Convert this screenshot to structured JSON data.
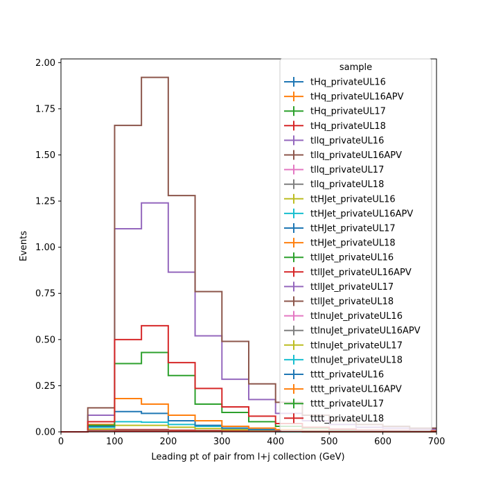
{
  "chart_data": {
    "type": "histogram-step",
    "xlabel": "Leading pt of pair from l+j collection (GeV)",
    "ylabel": "Events",
    "xlim": [
      0,
      700
    ],
    "ylim": [
      0,
      2.02
    ],
    "x_ticks": [
      0,
      100,
      200,
      300,
      400,
      500,
      600,
      700
    ],
    "y_ticks": [
      0.0,
      0.25,
      0.5,
      0.75,
      1.0,
      1.25,
      1.5,
      1.75,
      2.0
    ],
    "x_tick_labels": [
      "0",
      "100",
      "200",
      "300",
      "400",
      "500",
      "600",
      "700"
    ],
    "y_tick_labels": [
      "0.00",
      "0.25",
      "0.50",
      "0.75",
      "1.00",
      "1.25",
      "1.50",
      "1.75",
      "2.00"
    ],
    "bin_edges": [
      0,
      50,
      100,
      150,
      200,
      250,
      300,
      350,
      400,
      450,
      500,
      550,
      600,
      650,
      700
    ],
    "grid": false,
    "legend": {
      "title": "sample",
      "placement": "top-right"
    },
    "series": [
      {
        "name": "tHq_privateUL16",
        "color": "#1f77b4",
        "values": [
          0,
          0.005,
          0.008,
          0.008,
          0.006,
          0.005,
          0.004,
          0.003,
          0.002,
          0.002,
          0.001,
          0.001,
          0.001,
          0.001
        ]
      },
      {
        "name": "tHq_privateUL16APV",
        "color": "#ff7f0e",
        "values": [
          0,
          0.004,
          0.007,
          0.007,
          0.005,
          0.004,
          0.003,
          0.002,
          0.002,
          0.001,
          0.001,
          0.001,
          0.001,
          0.001
        ]
      },
      {
        "name": "tHq_privateUL17",
        "color": "#2ca02c",
        "values": [
          0,
          0.006,
          0.01,
          0.01,
          0.007,
          0.006,
          0.004,
          0.003,
          0.002,
          0.002,
          0.001,
          0.001,
          0.001,
          0.001
        ]
      },
      {
        "name": "tHq_privateUL18",
        "color": "#d62728",
        "values": [
          0,
          0.007,
          0.012,
          0.012,
          0.009,
          0.007,
          0.005,
          0.004,
          0.003,
          0.002,
          0.002,
          0.001,
          0.001,
          0.001
        ]
      },
      {
        "name": "tllq_privateUL16",
        "color": "#9467bd",
        "values": [
          0,
          0.09,
          1.1,
          1.24,
          0.865,
          0.52,
          0.285,
          0.175,
          0.1,
          0.06,
          0.04,
          0.025,
          0.02,
          0.015
        ]
      },
      {
        "name": "tllq_privateUL16APV",
        "color": "#8c564b",
        "values": [
          0,
          0.13,
          1.66,
          1.92,
          1.28,
          0.76,
          0.49,
          0.26,
          0.16,
          0.09,
          0.06,
          0.04,
          0.03,
          0.02
        ]
      },
      {
        "name": "tllq_privateUL17",
        "color": "#e377c2",
        "values": [
          0,
          0.004,
          0.006,
          0.006,
          0.005,
          0.004,
          0.003,
          0.002,
          0.002,
          0.001,
          0.001,
          0.001,
          0.001,
          0.001
        ]
      },
      {
        "name": "tllq_privateUL18",
        "color": "#7f7f7f",
        "values": [
          0,
          0.004,
          0.006,
          0.006,
          0.005,
          0.004,
          0.003,
          0.002,
          0.002,
          0.001,
          0.001,
          0.001,
          0.001,
          0.001
        ]
      },
      {
        "name": "ttHJet_privateUL16",
        "color": "#bcbd22",
        "values": [
          0,
          0.015,
          0.035,
          0.035,
          0.025,
          0.018,
          0.012,
          0.008,
          0.005,
          0.004,
          0.003,
          0.002,
          0.002,
          0.001
        ]
      },
      {
        "name": "ttHJet_privateUL16APV",
        "color": "#17becf",
        "values": [
          0,
          0.025,
          0.055,
          0.052,
          0.04,
          0.03,
          0.02,
          0.012,
          0.008,
          0.006,
          0.004,
          0.003,
          0.002,
          0.002
        ]
      },
      {
        "name": "ttHJet_privateUL17",
        "color": "#1f77b4",
        "values": [
          0,
          0.03,
          0.11,
          0.1,
          0.06,
          0.035,
          0.02,
          0.012,
          0.008,
          0.005,
          0.004,
          0.003,
          0.002,
          0.002
        ]
      },
      {
        "name": "ttHJet_privateUL18",
        "color": "#ff7f0e",
        "values": [
          0,
          0.04,
          0.18,
          0.15,
          0.09,
          0.06,
          0.03,
          0.02,
          0.012,
          0.008,
          0.006,
          0.004,
          0.003,
          0.002
        ]
      },
      {
        "name": "ttllJet_privateUL16",
        "color": "#2ca02c",
        "values": [
          0,
          0.035,
          0.37,
          0.43,
          0.305,
          0.15,
          0.105,
          0.055,
          0.03,
          0.02,
          0.012,
          0.008,
          0.006,
          0.004
        ]
      },
      {
        "name": "ttllJet_privateUL16APV",
        "color": "#d62728",
        "values": [
          0,
          0.055,
          0.5,
          0.575,
          0.375,
          0.235,
          0.135,
          0.085,
          0.045,
          0.025,
          0.015,
          0.01,
          0.008,
          0.005
        ]
      },
      {
        "name": "ttllJet_privateUL17",
        "color": "#9467bd",
        "values": [
          0,
          0.004,
          0.008,
          0.008,
          0.006,
          0.005,
          0.003,
          0.002,
          0.002,
          0.001,
          0.001,
          0.001,
          0.001,
          0.001
        ]
      },
      {
        "name": "ttllJet_privateUL18",
        "color": "#8c564b",
        "values": [
          0,
          0.004,
          0.008,
          0.008,
          0.006,
          0.005,
          0.003,
          0.002,
          0.002,
          0.001,
          0.001,
          0.001,
          0.001,
          0.001
        ]
      },
      {
        "name": "ttlnuJet_privateUL16",
        "color": "#e377c2",
        "values": [
          0,
          0.003,
          0.006,
          0.006,
          0.004,
          0.003,
          0.002,
          0.002,
          0.001,
          0.001,
          0.001,
          0.001,
          0.001,
          0.001
        ]
      },
      {
        "name": "ttlnuJet_privateUL16APV",
        "color": "#7f7f7f",
        "values": [
          0,
          0.003,
          0.006,
          0.006,
          0.004,
          0.003,
          0.002,
          0.002,
          0.001,
          0.001,
          0.001,
          0.001,
          0.001,
          0.001
        ]
      },
      {
        "name": "ttlnuJet_privateUL17",
        "color": "#bcbd22",
        "values": [
          0,
          0.003,
          0.006,
          0.006,
          0.004,
          0.003,
          0.002,
          0.002,
          0.001,
          0.001,
          0.001,
          0.001,
          0.001,
          0.001
        ]
      },
      {
        "name": "ttlnuJet_privateUL18",
        "color": "#17becf",
        "values": [
          0,
          0.003,
          0.006,
          0.006,
          0.004,
          0.003,
          0.002,
          0.002,
          0.001,
          0.001,
          0.001,
          0.001,
          0.001,
          0.001
        ]
      },
      {
        "name": "tttt_privateUL16",
        "color": "#1f77b4",
        "values": [
          0,
          0.002,
          0.004,
          0.004,
          0.004,
          0.003,
          0.003,
          0.002,
          0.002,
          0.001,
          0.001,
          0.001,
          0.001,
          0.001
        ]
      },
      {
        "name": "tttt_privateUL16APV",
        "color": "#ff7f0e",
        "values": [
          0,
          0.002,
          0.004,
          0.004,
          0.004,
          0.003,
          0.003,
          0.002,
          0.002,
          0.001,
          0.001,
          0.001,
          0.001,
          0.001
        ]
      },
      {
        "name": "tttt_privateUL17",
        "color": "#2ca02c",
        "values": [
          0,
          0.002,
          0.004,
          0.004,
          0.004,
          0.003,
          0.003,
          0.002,
          0.002,
          0.001,
          0.001,
          0.001,
          0.001,
          0.001
        ]
      },
      {
        "name": "tttt_privateUL18",
        "color": "#d62728",
        "values": [
          0,
          0.002,
          0.004,
          0.004,
          0.004,
          0.003,
          0.003,
          0.002,
          0.002,
          0.001,
          0.001,
          0.001,
          0.001,
          0.001
        ]
      }
    ]
  }
}
